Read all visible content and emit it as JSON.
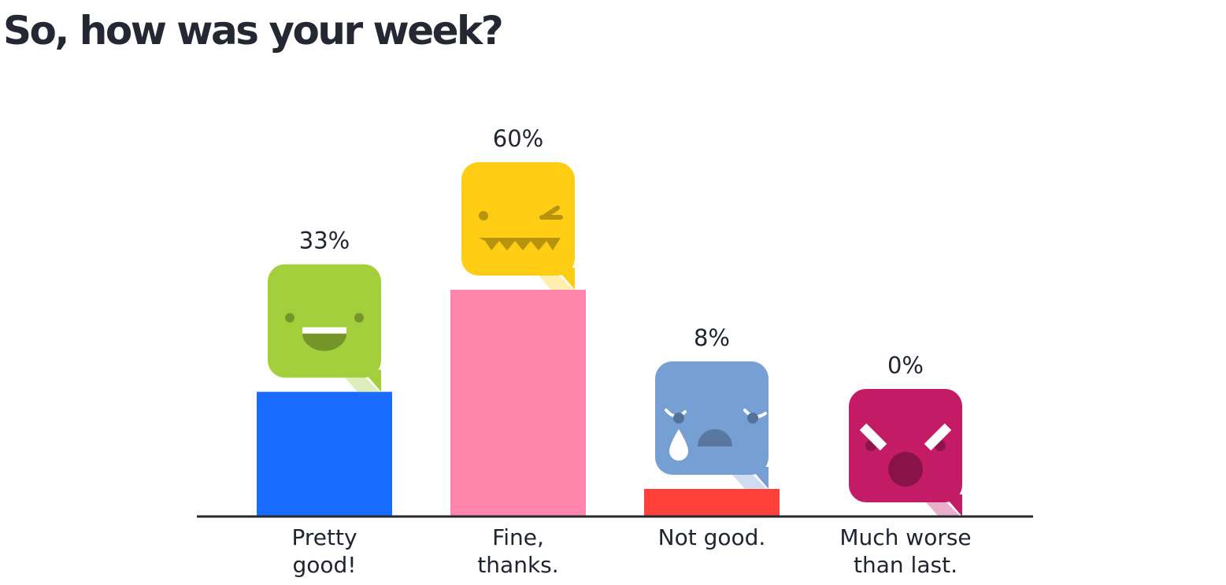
{
  "title": "So, how was your week?",
  "chart_data": {
    "type": "bar",
    "title": "So, how was your week?",
    "unit": "%",
    "ylim": [
      0,
      100
    ],
    "grid": false,
    "categories": [
      {
        "lines": [
          "Pretty",
          "good!"
        ],
        "value": 33,
        "label": "33%",
        "bar_color": "#1a6bff",
        "bubble_color": "#a2cf3b",
        "face": "happy-face-icon"
      },
      {
        "lines": [
          "Fine,",
          "thanks."
        ],
        "value": 60,
        "label": "60%",
        "bar_color": "#ff85ad",
        "bubble_color": "#fecd14",
        "face": "winking-face-icon"
      },
      {
        "lines": [
          "Not good."
        ],
        "value": 8,
        "label": "8%",
        "bar_color": "#ff403b",
        "bubble_color": "#769fd4",
        "face": "crying-face-icon"
      },
      {
        "lines": [
          "Much worse",
          "than last."
        ],
        "value": 0,
        "label": "0%",
        "bar_color": "#1f2430",
        "bubble_color": "#c41b67",
        "face": "angry-face-icon"
      }
    ],
    "axis_color": "#232833"
  }
}
